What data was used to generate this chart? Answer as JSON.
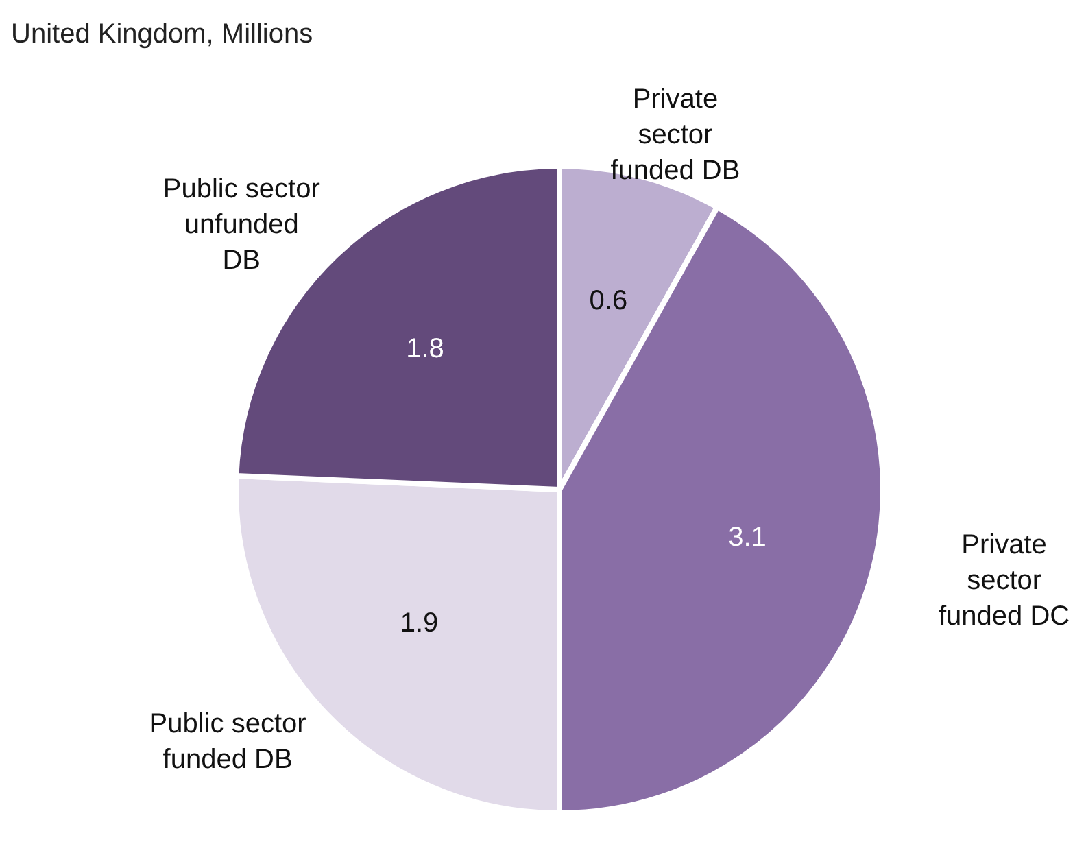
{
  "chart_data": {
    "type": "pie",
    "title": "United Kingdom, Millions",
    "categories": [
      "Private sector funded DB",
      "Private sector funded DC",
      "Public sector funded DB",
      "Public sector unfunded DB"
    ],
    "values": [
      0.6,
      3.1,
      1.9,
      1.8
    ],
    "colors": [
      "#bcaed0",
      "#896ea6",
      "#e1dae9",
      "#634a7b"
    ],
    "data_labels": true,
    "legend": false
  }
}
